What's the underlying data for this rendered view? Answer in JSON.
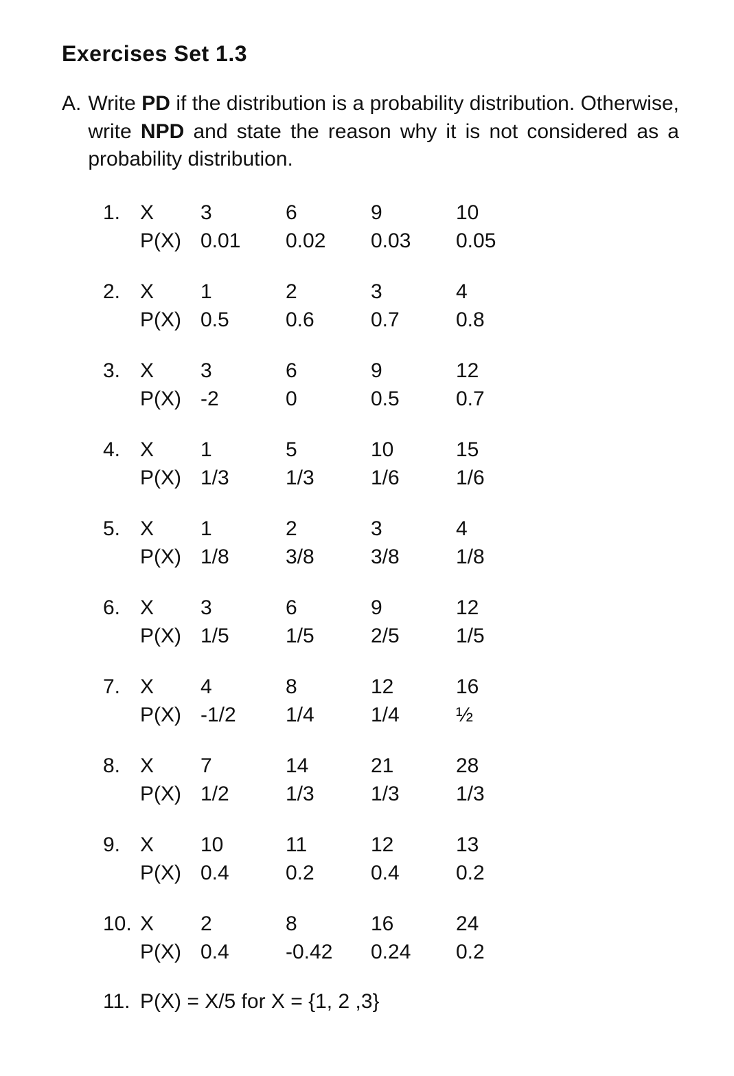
{
  "heading": "Exercises Set 1.3",
  "instruction": {
    "label": "A.",
    "pre": "Write ",
    "pd": "PD",
    "mid1": " if the distribution is a probability distribution. Otherwise, write ",
    "npd": "NPD",
    "mid2": " and state the reason why it is not considered as a probability distribution."
  },
  "vars": {
    "x": "X",
    "px": "P(X)"
  },
  "problems": [
    {
      "n": "1.",
      "x": [
        "3",
        "6",
        "9",
        "10"
      ],
      "p": [
        "0.01",
        "0.02",
        "0.03",
        "0.05"
      ]
    },
    {
      "n": "2.",
      "x": [
        "1",
        "2",
        "3",
        "4"
      ],
      "p": [
        "0.5",
        "0.6",
        "0.7",
        "0.8"
      ]
    },
    {
      "n": "3.",
      "x": [
        "3",
        "6",
        "9",
        "12"
      ],
      "p": [
        "-2",
        "0",
        "0.5",
        "0.7"
      ]
    },
    {
      "n": "4.",
      "x": [
        "1",
        "5",
        "10",
        "15"
      ],
      "p": [
        "1/3",
        "1/3",
        "1/6",
        "1/6"
      ]
    },
    {
      "n": "5.",
      "x": [
        "1",
        "2",
        "3",
        "4"
      ],
      "p": [
        "1/8",
        "3/8",
        "3/8",
        "1/8"
      ]
    },
    {
      "n": "6.",
      "x": [
        "3",
        "6",
        "9",
        "12"
      ],
      "p": [
        "1/5",
        "1/5",
        "2/5",
        "1/5"
      ]
    },
    {
      "n": "7.",
      "x": [
        "4",
        "8",
        "12",
        "16"
      ],
      "p": [
        "-1/2",
        "1/4",
        "1/4",
        "½"
      ]
    },
    {
      "n": "8.",
      "x": [
        "7",
        "14",
        "21",
        "28"
      ],
      "p": [
        "1/2",
        "1/3",
        "1/3",
        "1/3"
      ]
    },
    {
      "n": "9.",
      "x": [
        "10",
        "11",
        "12",
        "13"
      ],
      "p": [
        "0.4",
        "0.2",
        "0.4",
        "0.2"
      ]
    },
    {
      "n": "10.",
      "x": [
        "2",
        "8",
        "16",
        "24"
      ],
      "p": [
        "0.4",
        "-0.42",
        "0.24",
        "0.2"
      ]
    }
  ],
  "problem11": {
    "n": "11.",
    "text": "P(X) = X/5 for X = {1, 2 ,3}"
  }
}
